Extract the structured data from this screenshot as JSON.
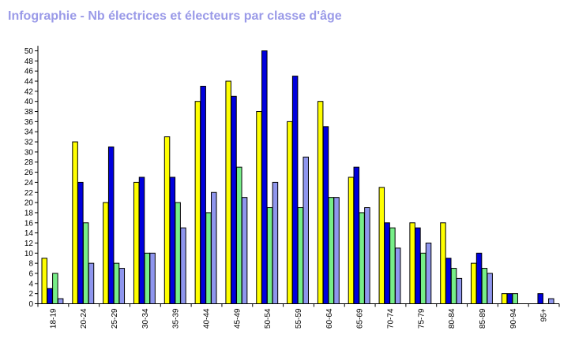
{
  "chart_data": {
    "type": "bar",
    "title": "Infographie - Nb électrices et électeurs par classe d'âge",
    "xlabel": "",
    "ylabel": "",
    "ylim": [
      0,
      51
    ],
    "yticks": [
      0,
      2,
      4,
      6,
      8,
      10,
      12,
      14,
      16,
      18,
      20,
      22,
      24,
      26,
      28,
      30,
      32,
      34,
      36,
      38,
      40,
      42,
      44,
      46,
      48,
      50
    ],
    "categories": [
      "18-19",
      "20-24",
      "25-29",
      "30-34",
      "35-39",
      "40-44",
      "45-49",
      "50-54",
      "55-59",
      "60-64",
      "65-69",
      "70-74",
      "75-79",
      "80-84",
      "85-89",
      "90-94",
      "95+"
    ],
    "series": [
      {
        "color": "#ffff00",
        "values": [
          9,
          32,
          20,
          24,
          33,
          40,
          44,
          38,
          36,
          40,
          25,
          23,
          16,
          16,
          8,
          2,
          0
        ]
      },
      {
        "color": "#0000dd",
        "values": [
          3,
          24,
          31,
          25,
          25,
          43,
          41,
          50,
          45,
          35,
          27,
          16,
          15,
          9,
          10,
          2,
          2
        ]
      },
      {
        "color": "#77ee88",
        "values": [
          6,
          16,
          8,
          10,
          20,
          18,
          27,
          19,
          19,
          21,
          18,
          15,
          10,
          7,
          7,
          2,
          0
        ]
      },
      {
        "color": "#8f96ee",
        "values": [
          1,
          8,
          7,
          10,
          15,
          22,
          21,
          24,
          29,
          21,
          19,
          11,
          12,
          5,
          6,
          0,
          1
        ]
      }
    ],
    "grid": false,
    "legend": "none"
  }
}
